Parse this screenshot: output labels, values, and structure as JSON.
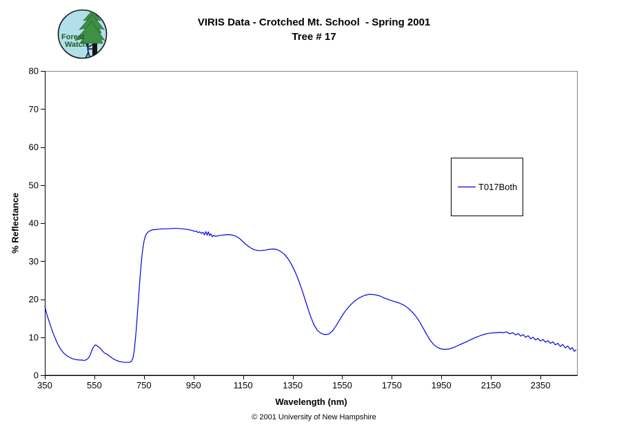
{
  "header": {
    "title_line1": "VIRIS Data - Crotched Mt. School  - Spring 2001",
    "title_line2": "Tree # 17",
    "logo": {
      "line1": "Forest",
      "line2": "Watch",
      "bg_color": "#b2e0ea",
      "foliage_color": "#3f8f46",
      "trunk_color": "#151515",
      "text_color": "#1d5a1d"
    }
  },
  "chart_data": {
    "type": "line",
    "title": "VIRIS Data - Crotched Mt. School - Spring 2001, Tree # 17",
    "xlabel": "Wavelength (nm)",
    "ylabel": "% Reflectance",
    "xlim": [
      350,
      2500
    ],
    "ylim": [
      0,
      80
    ],
    "x_ticks": [
      350,
      550,
      750,
      950,
      1150,
      1350,
      1550,
      1750,
      1950,
      2150,
      2350
    ],
    "y_ticks": [
      0,
      10,
      20,
      30,
      40,
      50,
      60,
      70,
      80
    ],
    "grid": false,
    "legend_position": "right",
    "series": [
      {
        "name": "T017Both",
        "color": "#0000e0",
        "points": [
          [
            350,
            18.3
          ],
          [
            355,
            16.8
          ],
          [
            360,
            15.6
          ],
          [
            368,
            14.0
          ],
          [
            376,
            12.5
          ],
          [
            384,
            11.0
          ],
          [
            392,
            9.7
          ],
          [
            400,
            8.5
          ],
          [
            408,
            7.5
          ],
          [
            416,
            6.7
          ],
          [
            424,
            6.0
          ],
          [
            432,
            5.5
          ],
          [
            440,
            5.1
          ],
          [
            450,
            4.7
          ],
          [
            460,
            4.4
          ],
          [
            470,
            4.2
          ],
          [
            480,
            4.1
          ],
          [
            490,
            4.0
          ],
          [
            500,
            4.0
          ],
          [
            510,
            3.9
          ],
          [
            518,
            4.1
          ],
          [
            526,
            4.5
          ],
          [
            534,
            5.5
          ],
          [
            542,
            6.9
          ],
          [
            548,
            7.6
          ],
          [
            554,
            8.0
          ],
          [
            560,
            7.8
          ],
          [
            568,
            7.4
          ],
          [
            576,
            6.9
          ],
          [
            584,
            6.3
          ],
          [
            592,
            5.8
          ],
          [
            600,
            5.6
          ],
          [
            612,
            5.0
          ],
          [
            624,
            4.4
          ],
          [
            636,
            4.0
          ],
          [
            648,
            3.7
          ],
          [
            660,
            3.5
          ],
          [
            672,
            3.4
          ],
          [
            684,
            3.4
          ],
          [
            692,
            3.4
          ],
          [
            700,
            3.7
          ],
          [
            706,
            4.6
          ],
          [
            711,
            6.6
          ],
          [
            716,
            9.8
          ],
          [
            721,
            13.8
          ],
          [
            726,
            18.4
          ],
          [
            731,
            23.0
          ],
          [
            736,
            27.2
          ],
          [
            741,
            30.8
          ],
          [
            746,
            33.6
          ],
          [
            751,
            35.5
          ],
          [
            757,
            36.8
          ],
          [
            764,
            37.5
          ],
          [
            772,
            37.9
          ],
          [
            782,
            38.2
          ],
          [
            795,
            38.3
          ],
          [
            810,
            38.4
          ],
          [
            825,
            38.5
          ],
          [
            845,
            38.5
          ],
          [
            865,
            38.6
          ],
          [
            885,
            38.6
          ],
          [
            905,
            38.5
          ],
          [
            920,
            38.4
          ],
          [
            935,
            38.2
          ],
          [
            948,
            38.0
          ],
          [
            956,
            37.8
          ],
          [
            962,
            37.9
          ],
          [
            968,
            37.5
          ],
          [
            975,
            37.7
          ],
          [
            982,
            37.3
          ],
          [
            988,
            37.6
          ],
          [
            994,
            36.9
          ],
          [
            1000,
            37.8
          ],
          [
            1005,
            36.8
          ],
          [
            1010,
            37.7
          ],
          [
            1015,
            36.7
          ],
          [
            1020,
            37.2
          ],
          [
            1026,
            36.4
          ],
          [
            1032,
            36.8
          ],
          [
            1040,
            36.5
          ],
          [
            1050,
            36.7
          ],
          [
            1060,
            36.8
          ],
          [
            1075,
            36.9
          ],
          [
            1090,
            37.0
          ],
          [
            1105,
            36.9
          ],
          [
            1120,
            36.6
          ],
          [
            1135,
            36.0
          ],
          [
            1150,
            35.1
          ],
          [
            1165,
            34.2
          ],
          [
            1180,
            33.5
          ],
          [
            1195,
            33.0
          ],
          [
            1210,
            32.8
          ],
          [
            1225,
            32.8
          ],
          [
            1240,
            32.9
          ],
          [
            1255,
            33.1
          ],
          [
            1270,
            33.2
          ],
          [
            1285,
            33.1
          ],
          [
            1300,
            32.6
          ],
          [
            1315,
            31.9
          ],
          [
            1330,
            30.8
          ],
          [
            1345,
            29.2
          ],
          [
            1360,
            27.2
          ],
          [
            1375,
            24.8
          ],
          [
            1390,
            22.0
          ],
          [
            1405,
            18.9
          ],
          [
            1420,
            15.9
          ],
          [
            1435,
            13.4
          ],
          [
            1450,
            11.8
          ],
          [
            1465,
            11.0
          ],
          [
            1480,
            10.7
          ],
          [
            1495,
            10.8
          ],
          [
            1510,
            11.6
          ],
          [
            1525,
            13.0
          ],
          [
            1540,
            14.6
          ],
          [
            1555,
            16.2
          ],
          [
            1570,
            17.5
          ],
          [
            1585,
            18.6
          ],
          [
            1600,
            19.5
          ],
          [
            1620,
            20.4
          ],
          [
            1640,
            21.0
          ],
          [
            1660,
            21.3
          ],
          [
            1680,
            21.2
          ],
          [
            1700,
            20.9
          ],
          [
            1720,
            20.3
          ],
          [
            1740,
            19.8
          ],
          [
            1760,
            19.4
          ],
          [
            1780,
            19.0
          ],
          [
            1800,
            18.4
          ],
          [
            1815,
            17.7
          ],
          [
            1830,
            16.8
          ],
          [
            1845,
            15.7
          ],
          [
            1860,
            14.3
          ],
          [
            1875,
            12.6
          ],
          [
            1890,
            10.8
          ],
          [
            1905,
            9.2
          ],
          [
            1920,
            8.0
          ],
          [
            1935,
            7.3
          ],
          [
            1950,
            6.9
          ],
          [
            1965,
            6.8
          ],
          [
            1980,
            6.9
          ],
          [
            1995,
            7.2
          ],
          [
            2010,
            7.6
          ],
          [
            2030,
            8.2
          ],
          [
            2050,
            8.8
          ],
          [
            2070,
            9.4
          ],
          [
            2090,
            10.0
          ],
          [
            2110,
            10.5
          ],
          [
            2130,
            10.9
          ],
          [
            2150,
            11.1
          ],
          [
            2170,
            11.2
          ],
          [
            2185,
            11.3
          ],
          [
            2200,
            11.2
          ],
          [
            2213,
            11.4
          ],
          [
            2226,
            10.9
          ],
          [
            2238,
            11.2
          ],
          [
            2250,
            10.6
          ],
          [
            2260,
            11.0
          ],
          [
            2270,
            10.3
          ],
          [
            2280,
            10.7
          ],
          [
            2290,
            10.0
          ],
          [
            2300,
            10.4
          ],
          [
            2310,
            9.6
          ],
          [
            2320,
            10.0
          ],
          [
            2330,
            9.3
          ],
          [
            2340,
            9.7
          ],
          [
            2350,
            9.0
          ],
          [
            2360,
            9.4
          ],
          [
            2370,
            8.7
          ],
          [
            2380,
            9.1
          ],
          [
            2390,
            8.4
          ],
          [
            2400,
            8.8
          ],
          [
            2410,
            8.0
          ],
          [
            2420,
            8.4
          ],
          [
            2430,
            7.6
          ],
          [
            2440,
            8.1
          ],
          [
            2450,
            7.2
          ],
          [
            2460,
            7.7
          ],
          [
            2470,
            6.8
          ],
          [
            2478,
            7.3
          ],
          [
            2486,
            6.3
          ],
          [
            2494,
            6.7
          ]
        ]
      }
    ]
  },
  "footer": {
    "copyright": "© 2001 University of New Hampshire"
  }
}
